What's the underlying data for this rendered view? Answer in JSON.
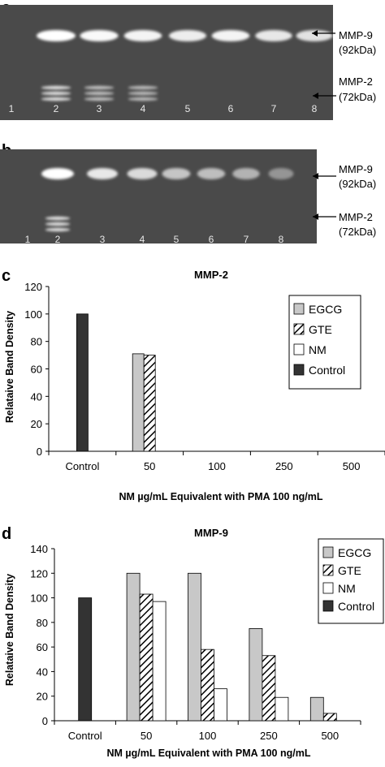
{
  "panels": {
    "a": "a",
    "b": "b",
    "c": "c",
    "d": "d"
  },
  "gels": [
    {
      "lanes": [
        "1",
        "2",
        "3",
        "4",
        "5",
        "6",
        "7",
        "8"
      ],
      "mmp9_label": "MMP-9",
      "mmp9_kda": "(92kDa)",
      "mmp2_label": "MMP-2",
      "mmp2_kda": "(72kDa)",
      "mmp9_intensity": [
        0,
        1.0,
        0.95,
        0.9,
        0.85,
        0.9,
        0.8,
        0.75
      ],
      "mmp2_intensity": [
        0,
        0.9,
        0.6,
        0.55,
        0,
        0,
        0,
        0
      ]
    },
    {
      "lanes": [
        "1",
        "2",
        "3",
        "4",
        "5",
        "6",
        "7",
        "8"
      ],
      "mmp9_label": "MMP-9",
      "mmp9_kda": "(92kDa)",
      "mmp2_label": "MMP-2",
      "mmp2_kda": "(72kDa)",
      "mmp9_intensity": [
        0,
        1.0,
        0.8,
        0.7,
        0.5,
        0.45,
        0.35,
        0.1
      ],
      "mmp2_intensity": [
        0,
        0.9,
        0,
        0,
        0,
        0,
        0,
        0
      ]
    }
  ],
  "legend_styles": {
    "EGCG": {
      "fill": "#c8c8c8",
      "pattern": "none"
    },
    "GTE": {
      "fill": "#ffffff",
      "pattern": "diagonal"
    },
    "NM": {
      "fill": "#ffffff",
      "pattern": "none"
    },
    "Control": {
      "fill": "#333333",
      "pattern": "none"
    }
  },
  "chart_data": [
    {
      "type": "bar",
      "title": "MMP-2",
      "xlabel": "NM µg/mL Equivalent with PMA 100 ng/mL",
      "ylabel": "Relataive Band Density",
      "categories": [
        "Control",
        "50",
        "100",
        "250",
        "500"
      ],
      "ylim": [
        0,
        120
      ],
      "yticks": [
        0,
        20,
        40,
        60,
        80,
        100,
        120
      ],
      "grid": false,
      "legend": "right",
      "legend_order": [
        "EGCG",
        "GTE",
        "NM",
        "Control"
      ],
      "series": [
        {
          "name": "EGCG",
          "values": [
            0,
            71,
            0,
            0,
            0
          ]
        },
        {
          "name": "GTE",
          "values": [
            0,
            70,
            0,
            0,
            0
          ]
        },
        {
          "name": "NM",
          "values": [
            0,
            0,
            0,
            0,
            0
          ]
        },
        {
          "name": "Control",
          "values": [
            100,
            0,
            0,
            0,
            0
          ]
        }
      ]
    },
    {
      "type": "bar",
      "title": "MMP-9",
      "xlabel": "NM µg/mL Equivalent with PMA 100 ng/mL",
      "ylabel": "Relataive Band Density",
      "categories": [
        "Control",
        "50",
        "100",
        "250",
        "500"
      ],
      "ylim": [
        0,
        140
      ],
      "yticks": [
        0,
        20,
        40,
        60,
        80,
        100,
        120,
        140
      ],
      "grid": false,
      "legend": "top-right",
      "legend_order": [
        "EGCG",
        "GTE",
        "NM",
        "Control"
      ],
      "series": [
        {
          "name": "EGCG",
          "values": [
            0,
            120,
            120,
            75,
            19
          ]
        },
        {
          "name": "GTE",
          "values": [
            0,
            103,
            58,
            53,
            6
          ]
        },
        {
          "name": "NM",
          "values": [
            0,
            97,
            26,
            19,
            0
          ]
        },
        {
          "name": "Control",
          "values": [
            100,
            0,
            0,
            0,
            0
          ]
        }
      ]
    }
  ]
}
